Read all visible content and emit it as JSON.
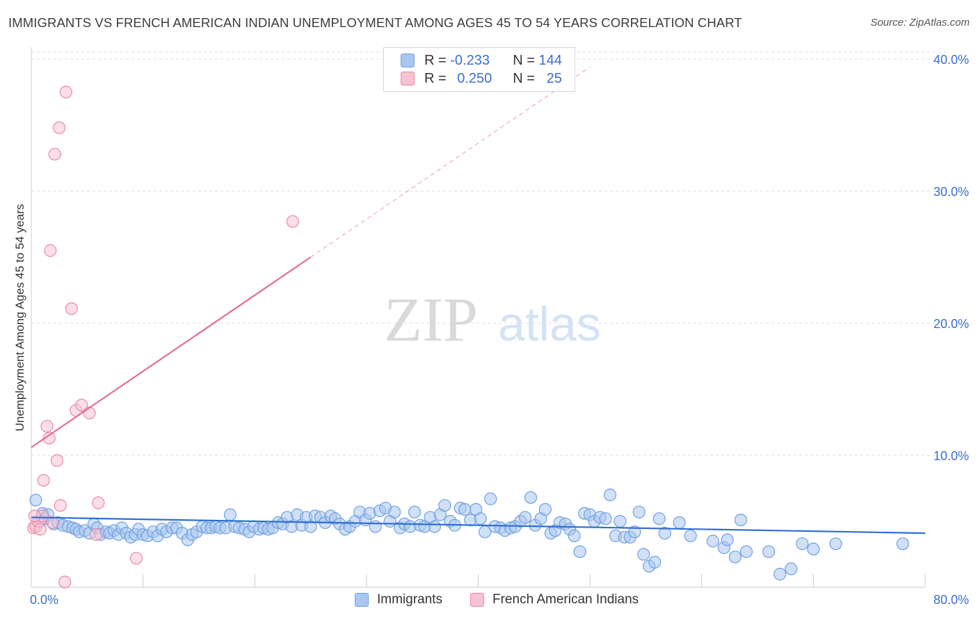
{
  "title": "IMMIGRANTS VS FRENCH AMERICAN INDIAN UNEMPLOYMENT AMONG AGES 45 TO 54 YEARS CORRELATION CHART",
  "source": "Source: ZipAtlas.com",
  "watermark": {
    "zip": "ZIP",
    "atlas": "atlas"
  },
  "legend": {
    "r_label": "R =",
    "n_label": "N =",
    "rows": [
      {
        "r": "-0.233",
        "n": "144"
      },
      {
        "r": "0.250",
        "n": "25"
      }
    ]
  },
  "chart_data": {
    "type": "scatter",
    "xlabel": "",
    "ylabel": "Unemployment Among Ages 45 to 54 years",
    "xlim": [
      0,
      80
    ],
    "ylim": [
      0,
      41
    ],
    "x_tick_labels": [
      "0.0%",
      "80.0%"
    ],
    "y_ticks": [
      10,
      20,
      30,
      40
    ],
    "y_tick_labels": [
      "10.0%",
      "20.0%",
      "30.0%",
      "40.0%"
    ],
    "grid": true,
    "legend_position": "top-center",
    "series": [
      {
        "name": "Immigrants",
        "color": "#6f9fe0",
        "fill": "#a9c6ef",
        "r": -0.233,
        "n": 144,
        "trend": {
          "x0": 0,
          "y0": 5.3,
          "x1": 80,
          "y1": 4.1
        },
        "points": [
          [
            0.4,
            6.6
          ],
          [
            0.8,
            5.0
          ],
          [
            1.0,
            5.6
          ],
          [
            1.2,
            5.2
          ],
          [
            1.5,
            5.5
          ],
          [
            2.0,
            4.8
          ],
          [
            2.4,
            4.9
          ],
          [
            2.8,
            4.7
          ],
          [
            3.3,
            4.6
          ],
          [
            3.7,
            4.5
          ],
          [
            4.0,
            4.4
          ],
          [
            4.3,
            4.2
          ],
          [
            4.8,
            4.3
          ],
          [
            5.2,
            4.1
          ],
          [
            5.6,
            4.8
          ],
          [
            5.9,
            4.5
          ],
          [
            6.2,
            4.0
          ],
          [
            6.7,
            4.2
          ],
          [
            7.0,
            4.1
          ],
          [
            7.4,
            4.3
          ],
          [
            7.8,
            4.0
          ],
          [
            8.1,
            4.5
          ],
          [
            8.5,
            4.1
          ],
          [
            8.9,
            3.8
          ],
          [
            9.3,
            4.0
          ],
          [
            9.6,
            4.4
          ],
          [
            10.0,
            4.0
          ],
          [
            10.4,
            3.9
          ],
          [
            10.9,
            4.2
          ],
          [
            11.3,
            3.9
          ],
          [
            11.7,
            4.4
          ],
          [
            12.1,
            4.2
          ],
          [
            12.6,
            4.5
          ],
          [
            13.0,
            4.5
          ],
          [
            13.5,
            4.1
          ],
          [
            14.0,
            3.6
          ],
          [
            14.4,
            4.0
          ],
          [
            14.8,
            4.2
          ],
          [
            15.3,
            4.6
          ],
          [
            15.7,
            4.5
          ],
          [
            16.1,
            4.5
          ],
          [
            16.5,
            4.6
          ],
          [
            16.9,
            4.5
          ],
          [
            17.4,
            4.5
          ],
          [
            17.8,
            5.5
          ],
          [
            18.2,
            4.6
          ],
          [
            18.6,
            4.5
          ],
          [
            19.1,
            4.4
          ],
          [
            19.5,
            4.2
          ],
          [
            19.9,
            4.6
          ],
          [
            20.4,
            4.4
          ],
          [
            20.8,
            4.5
          ],
          [
            21.2,
            4.4
          ],
          [
            21.6,
            4.5
          ],
          [
            22.1,
            4.9
          ],
          [
            22.5,
            4.8
          ],
          [
            22.9,
            5.3
          ],
          [
            23.3,
            4.6
          ],
          [
            23.8,
            5.5
          ],
          [
            24.2,
            4.7
          ],
          [
            24.6,
            5.3
          ],
          [
            25.0,
            4.6
          ],
          [
            25.4,
            5.4
          ],
          [
            25.9,
            5.3
          ],
          [
            26.3,
            4.9
          ],
          [
            26.8,
            5.4
          ],
          [
            27.2,
            5.2
          ],
          [
            27.6,
            4.8
          ],
          [
            28.1,
            4.4
          ],
          [
            28.5,
            4.6
          ],
          [
            29.0,
            5.0
          ],
          [
            29.4,
            5.7
          ],
          [
            29.9,
            5.1
          ],
          [
            30.3,
            5.6
          ],
          [
            30.8,
            4.6
          ],
          [
            31.2,
            5.8
          ],
          [
            31.7,
            6.0
          ],
          [
            32.1,
            5.0
          ],
          [
            32.5,
            5.7
          ],
          [
            33.0,
            4.5
          ],
          [
            33.4,
            4.8
          ],
          [
            33.9,
            4.6
          ],
          [
            34.3,
            5.7
          ],
          [
            34.8,
            4.7
          ],
          [
            35.2,
            4.6
          ],
          [
            35.7,
            5.3
          ],
          [
            36.1,
            4.6
          ],
          [
            36.6,
            5.5
          ],
          [
            37.0,
            6.2
          ],
          [
            37.5,
            5.0
          ],
          [
            37.9,
            4.7
          ],
          [
            38.4,
            6.0
          ],
          [
            38.8,
            5.9
          ],
          [
            39.3,
            5.1
          ],
          [
            39.8,
            5.9
          ],
          [
            40.2,
            5.2
          ],
          [
            40.6,
            4.2
          ],
          [
            41.1,
            6.7
          ],
          [
            41.5,
            4.6
          ],
          [
            42.0,
            4.5
          ],
          [
            42.4,
            4.3
          ],
          [
            42.9,
            4.5
          ],
          [
            43.3,
            4.6
          ],
          [
            43.8,
            5.0
          ],
          [
            44.2,
            5.3
          ],
          [
            44.7,
            6.8
          ],
          [
            45.1,
            4.7
          ],
          [
            45.6,
            5.2
          ],
          [
            46.0,
            5.9
          ],
          [
            46.5,
            4.1
          ],
          [
            46.9,
            4.3
          ],
          [
            47.3,
            4.9
          ],
          [
            47.8,
            4.8
          ],
          [
            48.2,
            4.4
          ],
          [
            48.6,
            3.9
          ],
          [
            49.1,
            2.7
          ],
          [
            49.5,
            5.6
          ],
          [
            50.0,
            5.5
          ],
          [
            50.4,
            5.0
          ],
          [
            50.9,
            5.3
          ],
          [
            51.4,
            5.2
          ],
          [
            51.8,
            7.0
          ],
          [
            52.3,
            3.9
          ],
          [
            52.7,
            5.0
          ],
          [
            53.1,
            3.8
          ],
          [
            53.6,
            3.8
          ],
          [
            54.0,
            4.2
          ],
          [
            54.4,
            5.7
          ],
          [
            54.8,
            2.5
          ],
          [
            55.3,
            1.6
          ],
          [
            55.8,
            1.9
          ],
          [
            56.2,
            5.2
          ],
          [
            56.7,
            4.1
          ],
          [
            58.0,
            4.9
          ],
          [
            59.0,
            3.9
          ],
          [
            61.0,
            3.5
          ],
          [
            62.0,
            3.0
          ],
          [
            62.3,
            3.6
          ],
          [
            63.0,
            2.3
          ],
          [
            63.5,
            5.1
          ],
          [
            64.0,
            2.7
          ],
          [
            66.0,
            2.7
          ],
          [
            67.0,
            1.0
          ],
          [
            68.0,
            1.4
          ],
          [
            69.0,
            3.3
          ],
          [
            70.0,
            2.9
          ],
          [
            72.0,
            3.3
          ],
          [
            78.0,
            3.3
          ]
        ]
      },
      {
        "name": "French American Indians",
        "color": "#e98aa6",
        "fill": "#f7c2d1",
        "r": 0.25,
        "n": 25,
        "trend": {
          "x0": 0,
          "y0": 10.6,
          "x1": 25,
          "y1": 25.0,
          "dash_to_x": 50
        },
        "points": [
          [
            0.2,
            4.5
          ],
          [
            0.4,
            4.6
          ],
          [
            0.6,
            5.0
          ],
          [
            0.8,
            4.4
          ],
          [
            1.0,
            5.4
          ],
          [
            1.1,
            8.1
          ],
          [
            1.4,
            12.2
          ],
          [
            1.6,
            11.3
          ],
          [
            1.7,
            25.5
          ],
          [
            1.9,
            4.9
          ],
          [
            2.1,
            32.8
          ],
          [
            2.3,
            9.6
          ],
          [
            2.5,
            34.8
          ],
          [
            2.6,
            6.2
          ],
          [
            3.0,
            0.4
          ],
          [
            3.1,
            37.5
          ],
          [
            3.6,
            21.1
          ],
          [
            4.0,
            13.4
          ],
          [
            4.5,
            13.8
          ],
          [
            5.2,
            13.2
          ],
          [
            5.8,
            4.0
          ],
          [
            6.0,
            6.4
          ],
          [
            9.4,
            2.2
          ],
          [
            23.4,
            27.7
          ],
          [
            0.3,
            5.4
          ]
        ]
      }
    ]
  }
}
